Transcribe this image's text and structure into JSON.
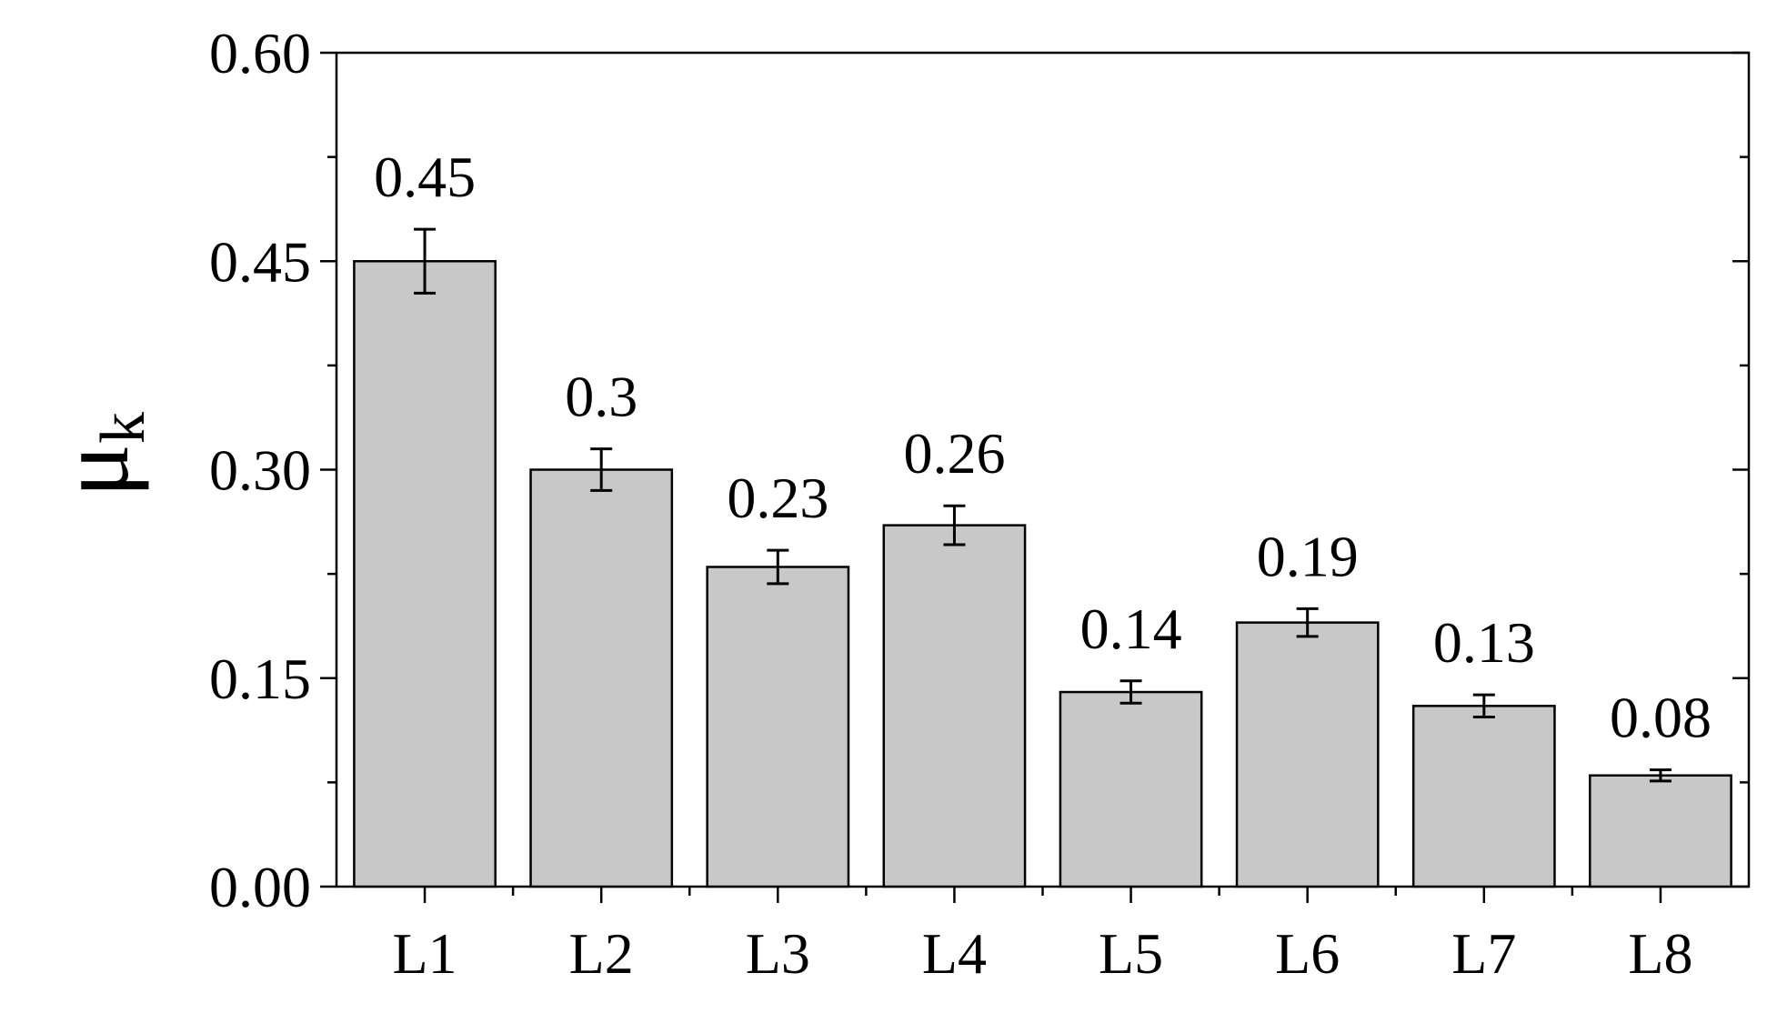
{
  "chart_data": {
    "type": "bar",
    "title": "",
    "xlabel": "",
    "ylabel": {
      "symbol": "μ",
      "subscript": "k"
    },
    "categories": [
      "L1",
      "L2",
      "L3",
      "L4",
      "L5",
      "L6",
      "L7",
      "L8"
    ],
    "values": [
      0.45,
      0.3,
      0.23,
      0.26,
      0.14,
      0.19,
      0.13,
      0.08
    ],
    "errors": [
      0.023,
      0.015,
      0.012,
      0.014,
      0.008,
      0.01,
      0.008,
      0.004
    ],
    "data_labels": [
      "0.45",
      "0.3",
      "0.23",
      "0.26",
      "0.14",
      "0.19",
      "0.13",
      "0.08"
    ],
    "ylim": [
      0,
      0.6
    ],
    "yticks": [
      0.0,
      0.15,
      0.3,
      0.45,
      0.6
    ],
    "ytick_labels": [
      "0.00",
      "0.15",
      "0.30",
      "0.45",
      "0.60"
    ],
    "grid": false,
    "legend": "none",
    "colors": {
      "bar_fill": "#c8c8c8",
      "bar_stroke": "#000000",
      "axis": "#000000"
    }
  }
}
